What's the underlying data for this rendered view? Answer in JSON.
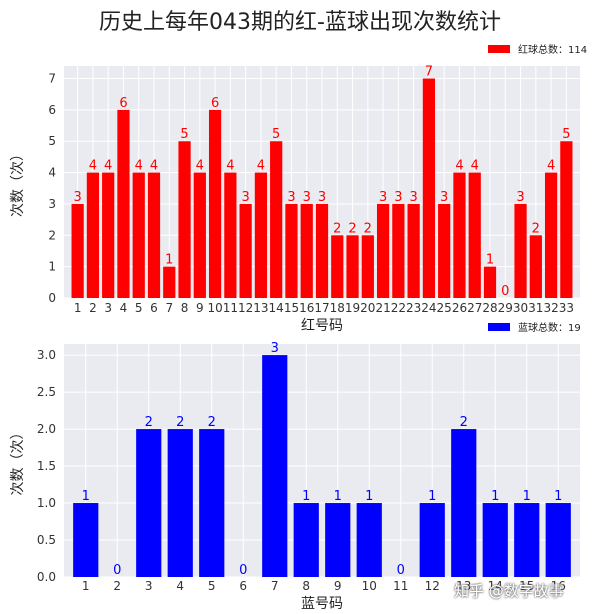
{
  "title": "历史上每年043期的红-蓝球出现次数统计",
  "watermark": "知乎 @数字故事",
  "colors": {
    "red": "#ff0000",
    "blue": "#0000ff",
    "plot_bg": "#e9ebf1",
    "grid": "#ffffff"
  },
  "chart_data": [
    {
      "type": "bar",
      "categories": [
        "1",
        "2",
        "3",
        "4",
        "5",
        "6",
        "7",
        "8",
        "9",
        "10",
        "11",
        "12",
        "13",
        "14",
        "15",
        "16",
        "17",
        "18",
        "19",
        "20",
        "21",
        "22",
        "23",
        "24",
        "25",
        "26",
        "27",
        "28",
        "29",
        "30",
        "31",
        "32",
        "33"
      ],
      "series": [
        {
          "name": "红球总数：114",
          "values": [
            3,
            4,
            4,
            6,
            4,
            4,
            1,
            5,
            4,
            6,
            4,
            3,
            4,
            5,
            3,
            3,
            3,
            2,
            2,
            2,
            3,
            3,
            3,
            7,
            3,
            4,
            4,
            1,
            0,
            3,
            2,
            4,
            5
          ]
        }
      ],
      "xlabel": "红号码",
      "ylabel": "次数（次）",
      "ylim": [
        0,
        7.4
      ],
      "yticks": [
        "0",
        "1",
        "2",
        "3",
        "4",
        "5",
        "6",
        "7"
      ],
      "grid": true,
      "legend": "top-right",
      "color": "#ff0000"
    },
    {
      "type": "bar",
      "categories": [
        "1",
        "2",
        "3",
        "4",
        "5",
        "6",
        "7",
        "8",
        "9",
        "10",
        "11",
        "12",
        "13",
        "14",
        "15",
        "16"
      ],
      "tick_labels": [
        "1",
        "2",
        "3",
        "4",
        "5",
        "6",
        "7",
        "8",
        "9",
        "10",
        "11",
        "12",
        "13",
        "14",
        "15",
        "16"
      ],
      "series": [
        {
          "name": "蓝球总数：19",
          "values": [
            1,
            0,
            2,
            2,
            2,
            0,
            3,
            1,
            1,
            1,
            0,
            1,
            2,
            1,
            1,
            1
          ]
        }
      ],
      "xlabel": "蓝号码",
      "ylabel": "次数（次）",
      "ylim": [
        0,
        3.15
      ],
      "yticks": [
        "0.0",
        "0.5",
        "1.0",
        "1.5",
        "2.0",
        "2.5",
        "3.0"
      ],
      "grid": true,
      "legend": "top-right",
      "color": "#0000ff"
    }
  ]
}
